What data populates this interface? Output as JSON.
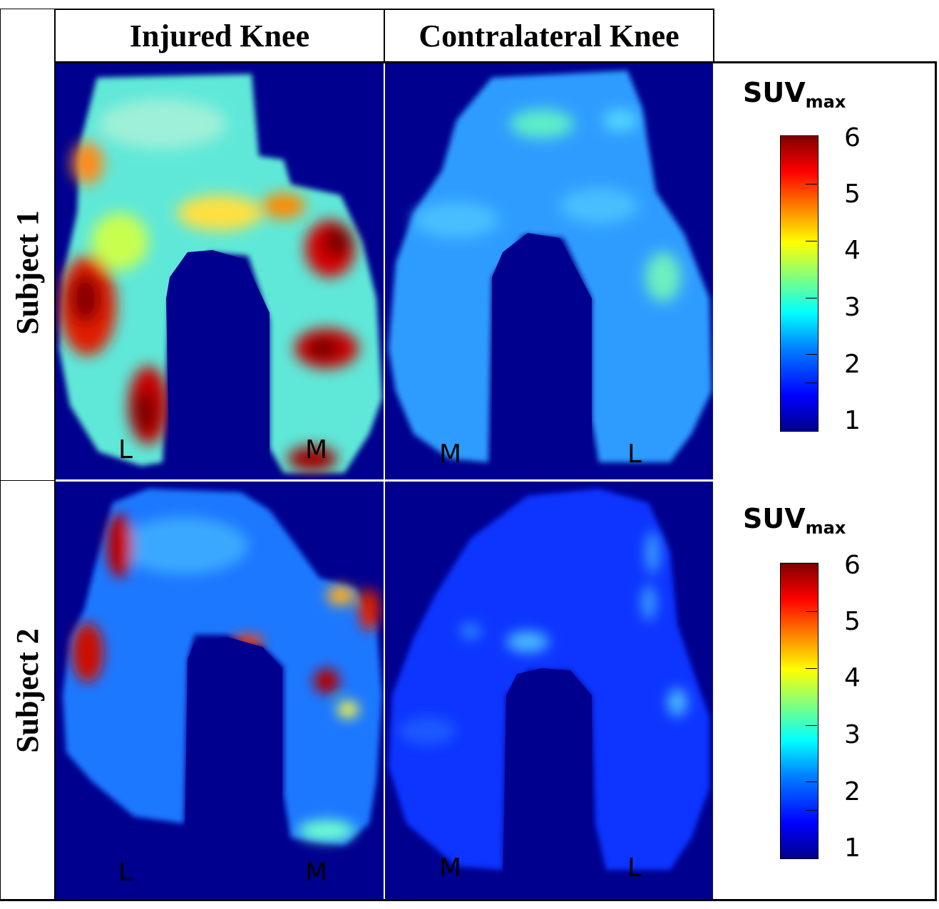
{
  "headers": {
    "col_injured": "Injured Knee",
    "col_contralateral": "Contralateral Knee",
    "row_subject1": "Subject 1",
    "row_subject2": "Subject 2"
  },
  "panels": {
    "s1_injured": {
      "left_label": "L",
      "right_label": "M"
    },
    "s1_contra": {
      "left_label": "M",
      "right_label": "L"
    },
    "s2_injured": {
      "left_label": "L",
      "right_label": "M"
    },
    "s2_contra": {
      "left_label": "M",
      "right_label": "L"
    }
  },
  "colorbar": {
    "title": "SUV",
    "title_sub": "max",
    "ticks": [
      "6",
      "5",
      "4",
      "3",
      "2",
      "1"
    ],
    "colormap": "jet",
    "colors": [
      "#00008f",
      "#0000ff",
      "#0080ff",
      "#00ffff",
      "#ffff00",
      "#ff0000",
      "#800000"
    ]
  }
}
